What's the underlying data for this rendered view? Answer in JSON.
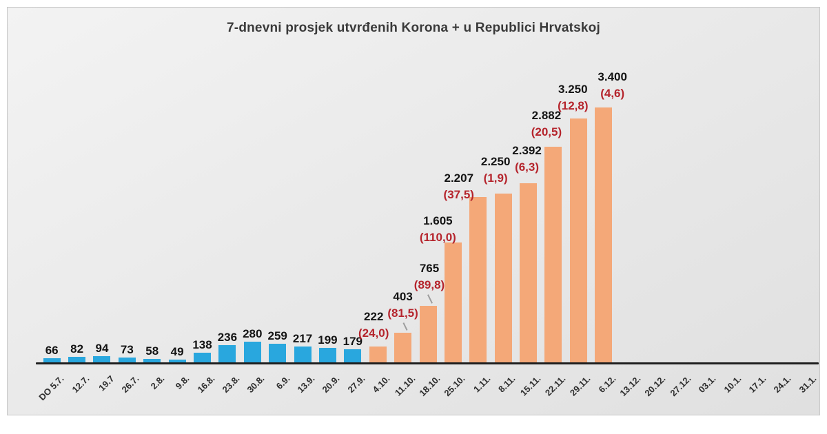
{
  "chart_data": {
    "type": "bar",
    "title": "7-dnevni prosjek utvrđenih Korona + u Republici Hrvatskoj",
    "xlabel": "",
    "ylabel": "",
    "ylim": [
      0,
      3400
    ],
    "grid": false,
    "legend": null,
    "categories": [
      "DO 5.7.",
      "12.7.",
      "19.7",
      "26.7.",
      "2.8.",
      "9.8.",
      "16.8.",
      "23.8.",
      "30.8.",
      "6.9.",
      "13.9.",
      "20.9.",
      "27.9.",
      "4.10.",
      "11.10.",
      "18.10.",
      "25.10.",
      "1.11.",
      "8.11.",
      "15.11.",
      "22.11.",
      "29.11.",
      "6.12.",
      "13.12.",
      "20.12.",
      "27.12.",
      "03.1.",
      "10.1.",
      "17.1.",
      "24.1.",
      "31.1."
    ],
    "bars": [
      {
        "category": "DO 5.7.",
        "value": 66,
        "label": "66",
        "pct": null,
        "series": "blue"
      },
      {
        "category": "12.7.",
        "value": 82,
        "label": "82",
        "pct": null,
        "series": "blue"
      },
      {
        "category": "19.7",
        "value": 94,
        "label": "94",
        "pct": null,
        "series": "blue"
      },
      {
        "category": "26.7.",
        "value": 73,
        "label": "73",
        "pct": null,
        "series": "blue"
      },
      {
        "category": "2.8.",
        "value": 58,
        "label": "58",
        "pct": null,
        "series": "blue"
      },
      {
        "category": "9.8.",
        "value": 49,
        "label": "49",
        "pct": null,
        "series": "blue"
      },
      {
        "category": "16.8.",
        "value": 138,
        "label": "138",
        "pct": null,
        "series": "blue"
      },
      {
        "category": "23.8.",
        "value": 236,
        "label": "236",
        "pct": null,
        "series": "blue"
      },
      {
        "category": "30.8.",
        "value": 280,
        "label": "280",
        "pct": null,
        "series": "blue"
      },
      {
        "category": "6.9.",
        "value": 259,
        "label": "259",
        "pct": null,
        "series": "blue"
      },
      {
        "category": "13.9.",
        "value": 217,
        "label": "217",
        "pct": null,
        "series": "blue"
      },
      {
        "category": "20.9.",
        "value": 199,
        "label": "199",
        "pct": null,
        "series": "blue"
      },
      {
        "category": "27.9.",
        "value": 179,
        "label": "179",
        "pct": null,
        "series": "blue"
      },
      {
        "category": "4.10.",
        "value": 222,
        "label": "222",
        "pct": "(24,0)",
        "series": "orange",
        "dx": -6,
        "dy": 8
      },
      {
        "category": "11.10.",
        "value": 403,
        "label": "403",
        "pct": "(81,5)",
        "series": "orange",
        "dx": 0,
        "dy": 17,
        "leader": true
      },
      {
        "category": "18.10.",
        "value": 765,
        "label": "765",
        "pct": "(89,8)",
        "series": "orange",
        "dx": 2,
        "dy": 19,
        "leader": true
      },
      {
        "category": "25.10.",
        "value": 1605,
        "label": "1.605",
        "pct": "(110,0)",
        "series": "orange",
        "dx": -22,
        "dy": -4
      },
      {
        "category": "1.11.",
        "value": 2207,
        "label": "2.207",
        "pct": "(37,5)",
        "series": "orange",
        "dx": -28,
        "dy": -8
      },
      {
        "category": "8.11.",
        "value": 2250,
        "label": "2.250",
        "pct": "(1,9)",
        "series": "orange",
        "dx": -11,
        "dy": 11
      },
      {
        "category": "15.11.",
        "value": 2392,
        "label": "2.392",
        "pct": "(6,3)",
        "series": "orange",
        "dx": -2,
        "dy": 12
      },
      {
        "category": "22.11.",
        "value": 2882,
        "label": "2.882",
        "pct": "(20,5)",
        "series": "orange",
        "dx": -10,
        "dy": 10
      },
      {
        "category": "29.11.",
        "value": 3250,
        "label": "3.250",
        "pct": "(12,8)",
        "series": "orange",
        "dx": -8,
        "dy": 7
      },
      {
        "category": "6.12.",
        "value": 3400,
        "label": "3.400",
        "pct": "(4,6)",
        "series": "orange",
        "dx": 13,
        "dy": 9
      }
    ],
    "series_colors": {
      "blue": "#29a7de",
      "orange": "#f4a878"
    },
    "colors": {
      "value_label": "#141414",
      "pct_label": "#b5242c",
      "axis_line": "#1e1e1e",
      "tick_label": "#2e2e2e",
      "panel_border": "#c7c7c7"
    },
    "legend_position": "none"
  }
}
